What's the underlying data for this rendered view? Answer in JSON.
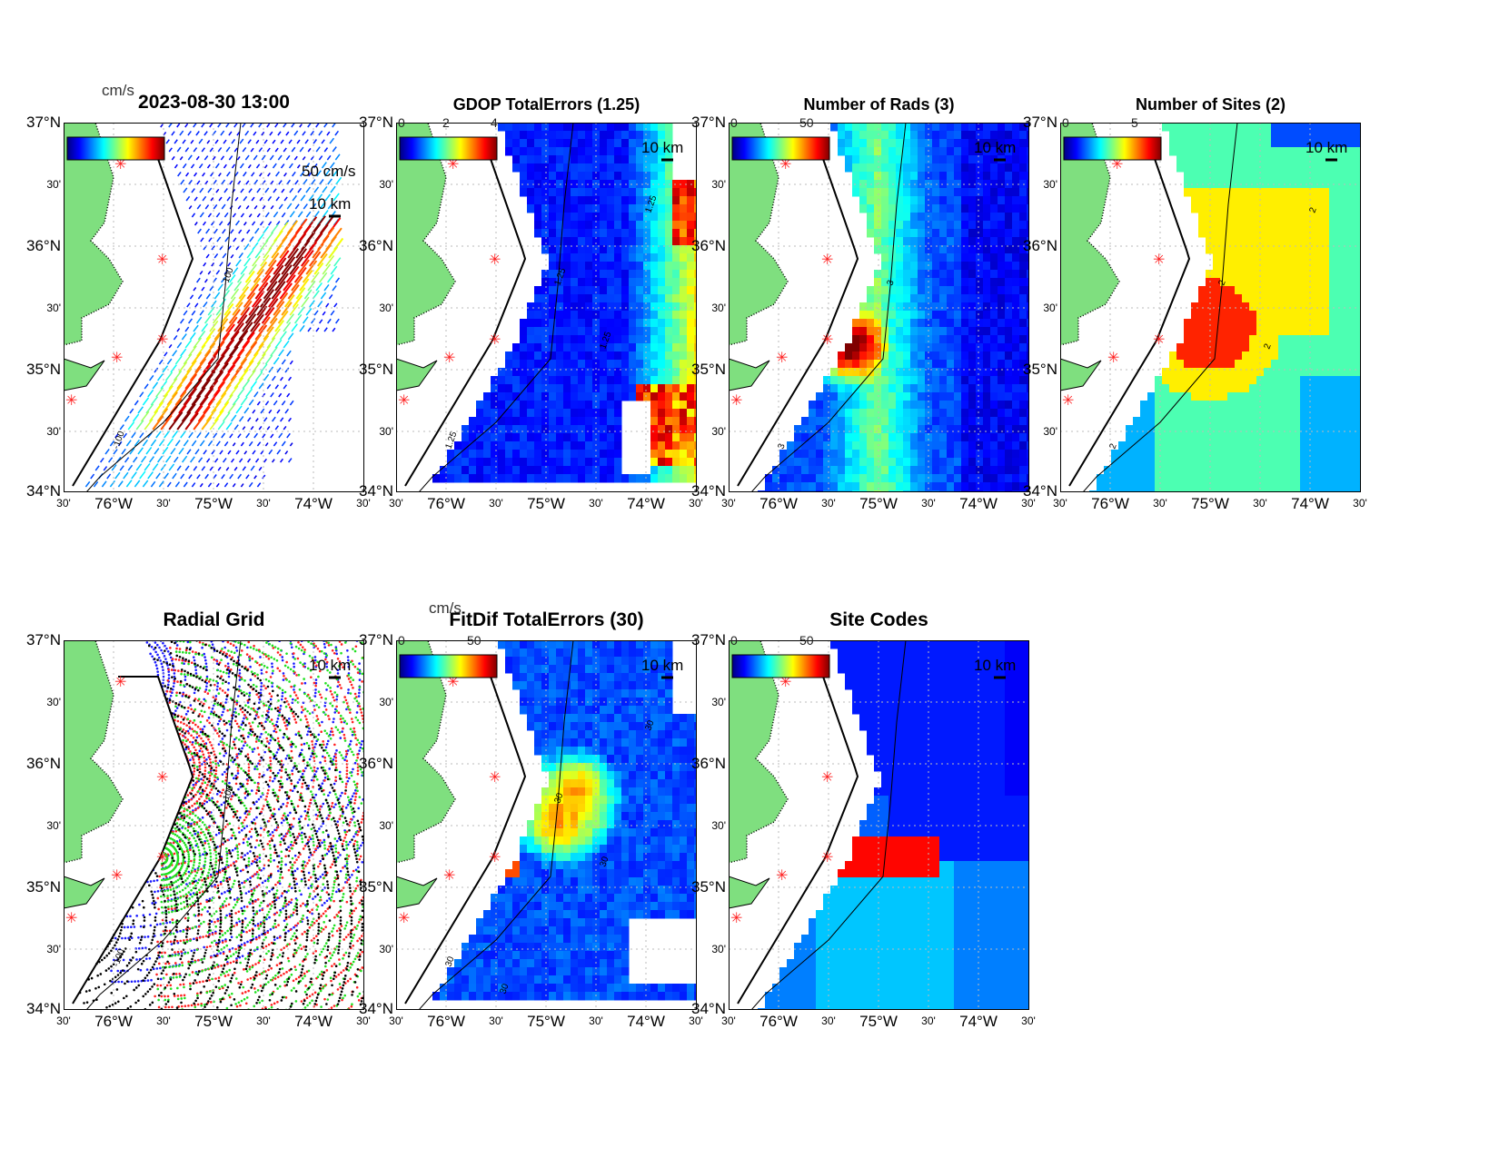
{
  "figure": {
    "timestamp": "2023-08-30 13:00",
    "units_label": "cm/s"
  },
  "axes": {
    "lat_labels": [
      "37°N",
      "30'",
      "36°N",
      "30'",
      "35°N",
      "30'",
      "34°N"
    ],
    "lon_labels": [
      "30'",
      "76°W",
      "30'",
      "75°W",
      "30'",
      "74°W",
      "30'"
    ]
  },
  "panels": [
    {
      "id": "currents",
      "title": "2023-08-30 13:00",
      "cbar_ticks": [],
      "scale_km": "10 km",
      "scale_vel": "50 cm/s",
      "contour_labels": [
        "-100",
        "-100"
      ],
      "kind": "vectors"
    },
    {
      "id": "gdop",
      "title": "GDOP TotalErrors (1.25)",
      "cbar_ticks": [
        "0",
        "2",
        "4"
      ],
      "scale_km": "10 km",
      "contour_labels": [
        "1.25",
        "1.25",
        "1.25",
        "1.25"
      ],
      "kind": "gdop"
    },
    {
      "id": "nrads",
      "title": "Number of Rads (3)",
      "cbar_ticks": [
        "0",
        "50"
      ],
      "scale_km": "10 km",
      "contour_labels": [
        "3",
        "3"
      ],
      "kind": "rads"
    },
    {
      "id": "nsites",
      "title": "Number of Sites (2)",
      "cbar_ticks": [
        "0",
        "5"
      ],
      "scale_km": "10 km",
      "contour_labels": [
        "2",
        "2",
        "2",
        "2"
      ],
      "kind": "sites"
    },
    {
      "id": "radgrid",
      "title": "Radial Grid",
      "cbar_ticks": [],
      "scale_km": "10 km",
      "contour_labels": [
        "-100",
        "-100"
      ],
      "kind": "radial"
    },
    {
      "id": "fitdif",
      "title": "FitDif TotalErrors (30)",
      "cbar_ticks": [
        "0",
        "50"
      ],
      "units": "cm/s",
      "scale_km": "10 km",
      "contour_labels": [
        "30",
        "30",
        "30",
        "30",
        "30"
      ],
      "kind": "fitdif"
    },
    {
      "id": "sitecodes",
      "title": "Site Codes",
      "cbar_ticks": [
        "0",
        "50"
      ],
      "scale_km": "10 km",
      "contour_labels": [],
      "kind": "codes"
    }
  ],
  "colors": {
    "land": "#7fdf7f",
    "site_marker": "#ff2020",
    "radial_sites": [
      "#1a1aff",
      "#ff2020",
      "#20e020",
      "#000000"
    ]
  }
}
